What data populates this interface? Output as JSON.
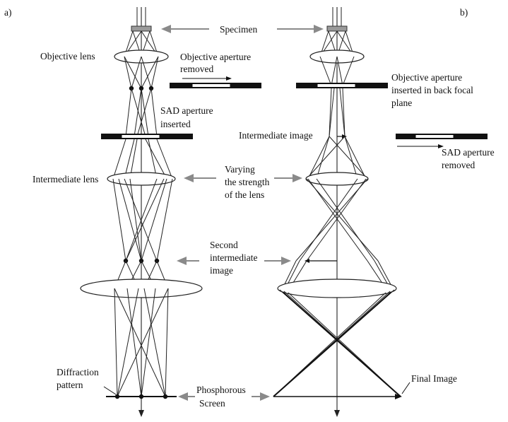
{
  "panels": {
    "a_label": "a)",
    "b_label": "b)"
  },
  "labels": {
    "specimen": "Specimen",
    "objective_lens": "Objective lens",
    "objective_aperture_removed": [
      "Objective aperture",
      "removed"
    ],
    "objective_aperture_inserted": [
      "Objective aperture",
      "inserted in back focal",
      "plane"
    ],
    "sad_aperture_inserted": [
      "SAD aperture",
      "inserted"
    ],
    "intermediate_image": "Intermediate image",
    "sad_aperture_removed": [
      "SAD aperture",
      "removed"
    ],
    "intermediate_lens": "Intermediate lens",
    "varying_strength": [
      "Varying",
      "the strength",
      "of the lens"
    ],
    "second_intermediate_image": [
      "Second",
      "intermediate",
      "image"
    ],
    "diffraction_pattern": [
      "Diffraction",
      "pattern"
    ],
    "phosphorous_screen": [
      "Phosphorous",
      "Screen"
    ],
    "final_image": "Final Image"
  },
  "colors": {
    "ink": "#111111",
    "grey_arrow": "#8a8a8a"
  }
}
